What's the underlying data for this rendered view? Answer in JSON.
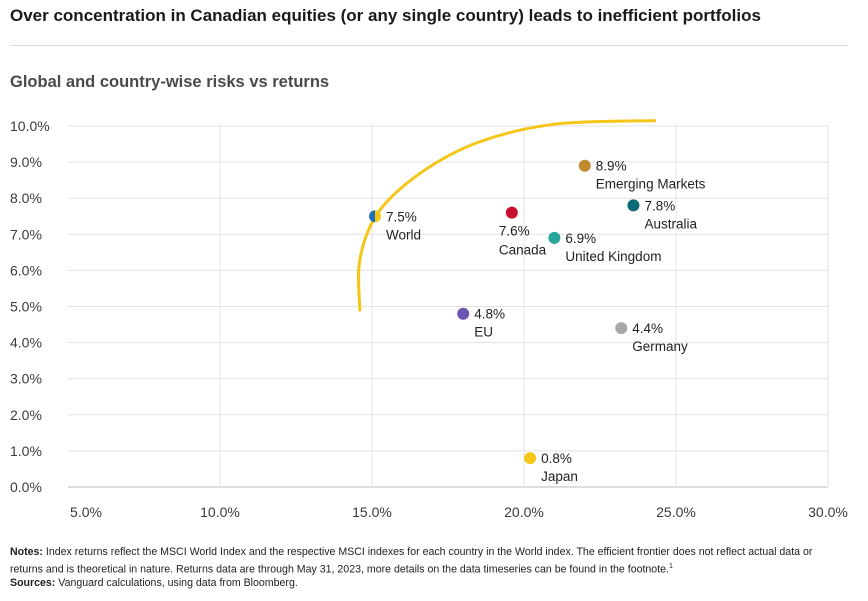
{
  "title": "Over concentration in Canadian equities (or any single country) leads to inefficient portfolios",
  "subtitle": "Global and country-wise risks vs returns",
  "notes": {
    "notes_label": "Notes:",
    "notes_text": "Index returns reflect the MSCI World Index and the respective MSCI indexes for each country in the World index. The efficient frontier does not reflect actual data or returns and is theoretical in nature. Returns data are through May 31, 2023, more details on the data timeseries can be found in the footnote.",
    "footnote_mark": "1",
    "sources_label": "Sources:",
    "sources_text": "Vanguard calculations, using data from Bloomberg."
  },
  "chart_data": {
    "type": "scatter",
    "title": "Global and country-wise risks vs returns",
    "xlabel": "",
    "ylabel": "",
    "xlim": [
      5,
      30
    ],
    "ylim": [
      0,
      10
    ],
    "x_ticks": [
      "5.0%",
      "10.0%",
      "15.0%",
      "20.0%",
      "25.0%",
      "30.0%"
    ],
    "y_ticks": [
      "0.0%",
      "1.0%",
      "2.0%",
      "3.0%",
      "4.0%",
      "5.0%",
      "6.0%",
      "7.0%",
      "8.0%",
      "9.0%",
      "10.0%"
    ],
    "grid": true,
    "points": [
      {
        "name": "World",
        "value_label": "7.5%",
        "x": 15.1,
        "y": 7.5,
        "color": "#1f6fb5",
        "color2": "#f5c518",
        "label_side": "right"
      },
      {
        "name": "Canada",
        "value_label": "7.6%",
        "x": 19.6,
        "y": 7.6,
        "color": "#c8102e",
        "label_side": "below"
      },
      {
        "name": "United Kingdom",
        "value_label": "6.9%",
        "x": 21.0,
        "y": 6.9,
        "color": "#2aa59c",
        "label_side": "right"
      },
      {
        "name": "Emerging Markets",
        "value_label": "8.9%",
        "x": 22.0,
        "y": 8.9,
        "color": "#c08a2e",
        "label_side": "right"
      },
      {
        "name": "Australia",
        "value_label": "7.8%",
        "x": 23.6,
        "y": 7.8,
        "color": "#0a6a78",
        "label_side": "right"
      },
      {
        "name": "EU",
        "value_label": "4.8%",
        "x": 18.0,
        "y": 4.8,
        "color": "#6a55b0",
        "label_side": "right"
      },
      {
        "name": "Germany",
        "value_label": "4.4%",
        "x": 23.2,
        "y": 4.4,
        "color": "#a8a8a8",
        "label_side": "right"
      },
      {
        "name": "Japan",
        "value_label": "0.8%",
        "x": 20.2,
        "y": 0.8,
        "color": "#f5c518",
        "label_side": "right"
      }
    ],
    "frontier": {
      "color": "#f5c518",
      "points": [
        [
          14.6,
          4.9
        ],
        [
          14.6,
          6.3
        ],
        [
          15.2,
          7.6
        ],
        [
          16.6,
          8.7
        ],
        [
          18.5,
          9.55
        ],
        [
          21.0,
          10.05
        ],
        [
          24.3,
          10.15
        ]
      ]
    }
  }
}
